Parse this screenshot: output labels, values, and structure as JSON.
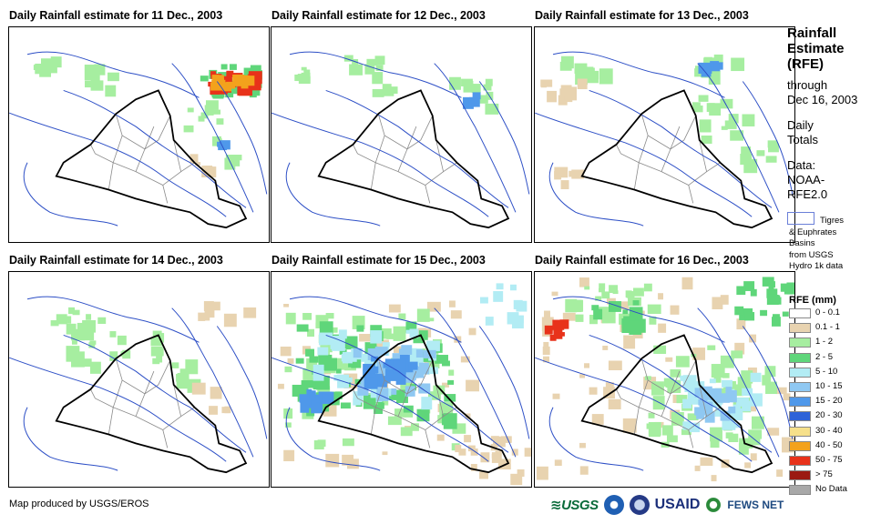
{
  "panels": [
    {
      "title": "Daily Rainfall estimate for 11 Dec., 2003",
      "level": 1
    },
    {
      "title": "Daily Rainfall estimate for 12 Dec., 2003",
      "level": 0
    },
    {
      "title": "Daily Rainfall estimate for 13 Dec., 2003",
      "level": 1
    },
    {
      "title": "Daily Rainfall estimate for 14 Dec., 2003",
      "level": 1
    },
    {
      "title": "Daily Rainfall estimate for 15 Dec., 2003",
      "level": 3
    },
    {
      "title": "Daily Rainfall estimate for 16 Dec., 2003",
      "level": 3
    }
  ],
  "sidebar": {
    "title_lines": [
      "Rainfall",
      "Estimate",
      "(RFE)"
    ],
    "through": "through",
    "date": "Dec 16, 2003",
    "daily": "Daily",
    "totals": "Totals",
    "data_label": "Data:",
    "data_source_1": "NOAA-",
    "data_source_2": "RFE2.0",
    "basin_note_1": "Tigres",
    "basin_note_2": "& Euphrates",
    "basin_note_3": "Basins",
    "basin_note_4": "from USGS",
    "basin_note_5": "Hydro 1k data",
    "legend_title": "RFE (mm)"
  },
  "legend": [
    {
      "label": "0 - 0.1",
      "color": "#ffffff"
    },
    {
      "label": "0.1 - 1",
      "color": "#e8d3b0"
    },
    {
      "label": "1 - 2",
      "color": "#a6eea0"
    },
    {
      "label": "2 - 5",
      "color": "#5fd67a"
    },
    {
      "label": "5 - 10",
      "color": "#b2ecf4"
    },
    {
      "label": "10 - 15",
      "color": "#8fc8f2"
    },
    {
      "label": "15 - 20",
      "color": "#4f98ea"
    },
    {
      "label": "20 - 30",
      "color": "#2e62d8"
    },
    {
      "label": "30 - 40",
      "color": "#f6e08a"
    },
    {
      "label": "40 - 50",
      "color": "#f3a21c"
    },
    {
      "label": "50 - 75",
      "color": "#e8321a"
    },
    {
      "label": "> 75",
      "color": "#9b1a12"
    },
    {
      "label": "No Data",
      "color": "#a8a8a8"
    }
  ],
  "footer": {
    "credit": "Map produced by USGS/EROS"
  },
  "logos": {
    "usgs": "USGS",
    "usaid": "USAID",
    "fews": "FEWS NET"
  },
  "colors": {
    "border": "#000000",
    "rivers": "#2d4fc6",
    "admin": "#8a8a8a"
  }
}
